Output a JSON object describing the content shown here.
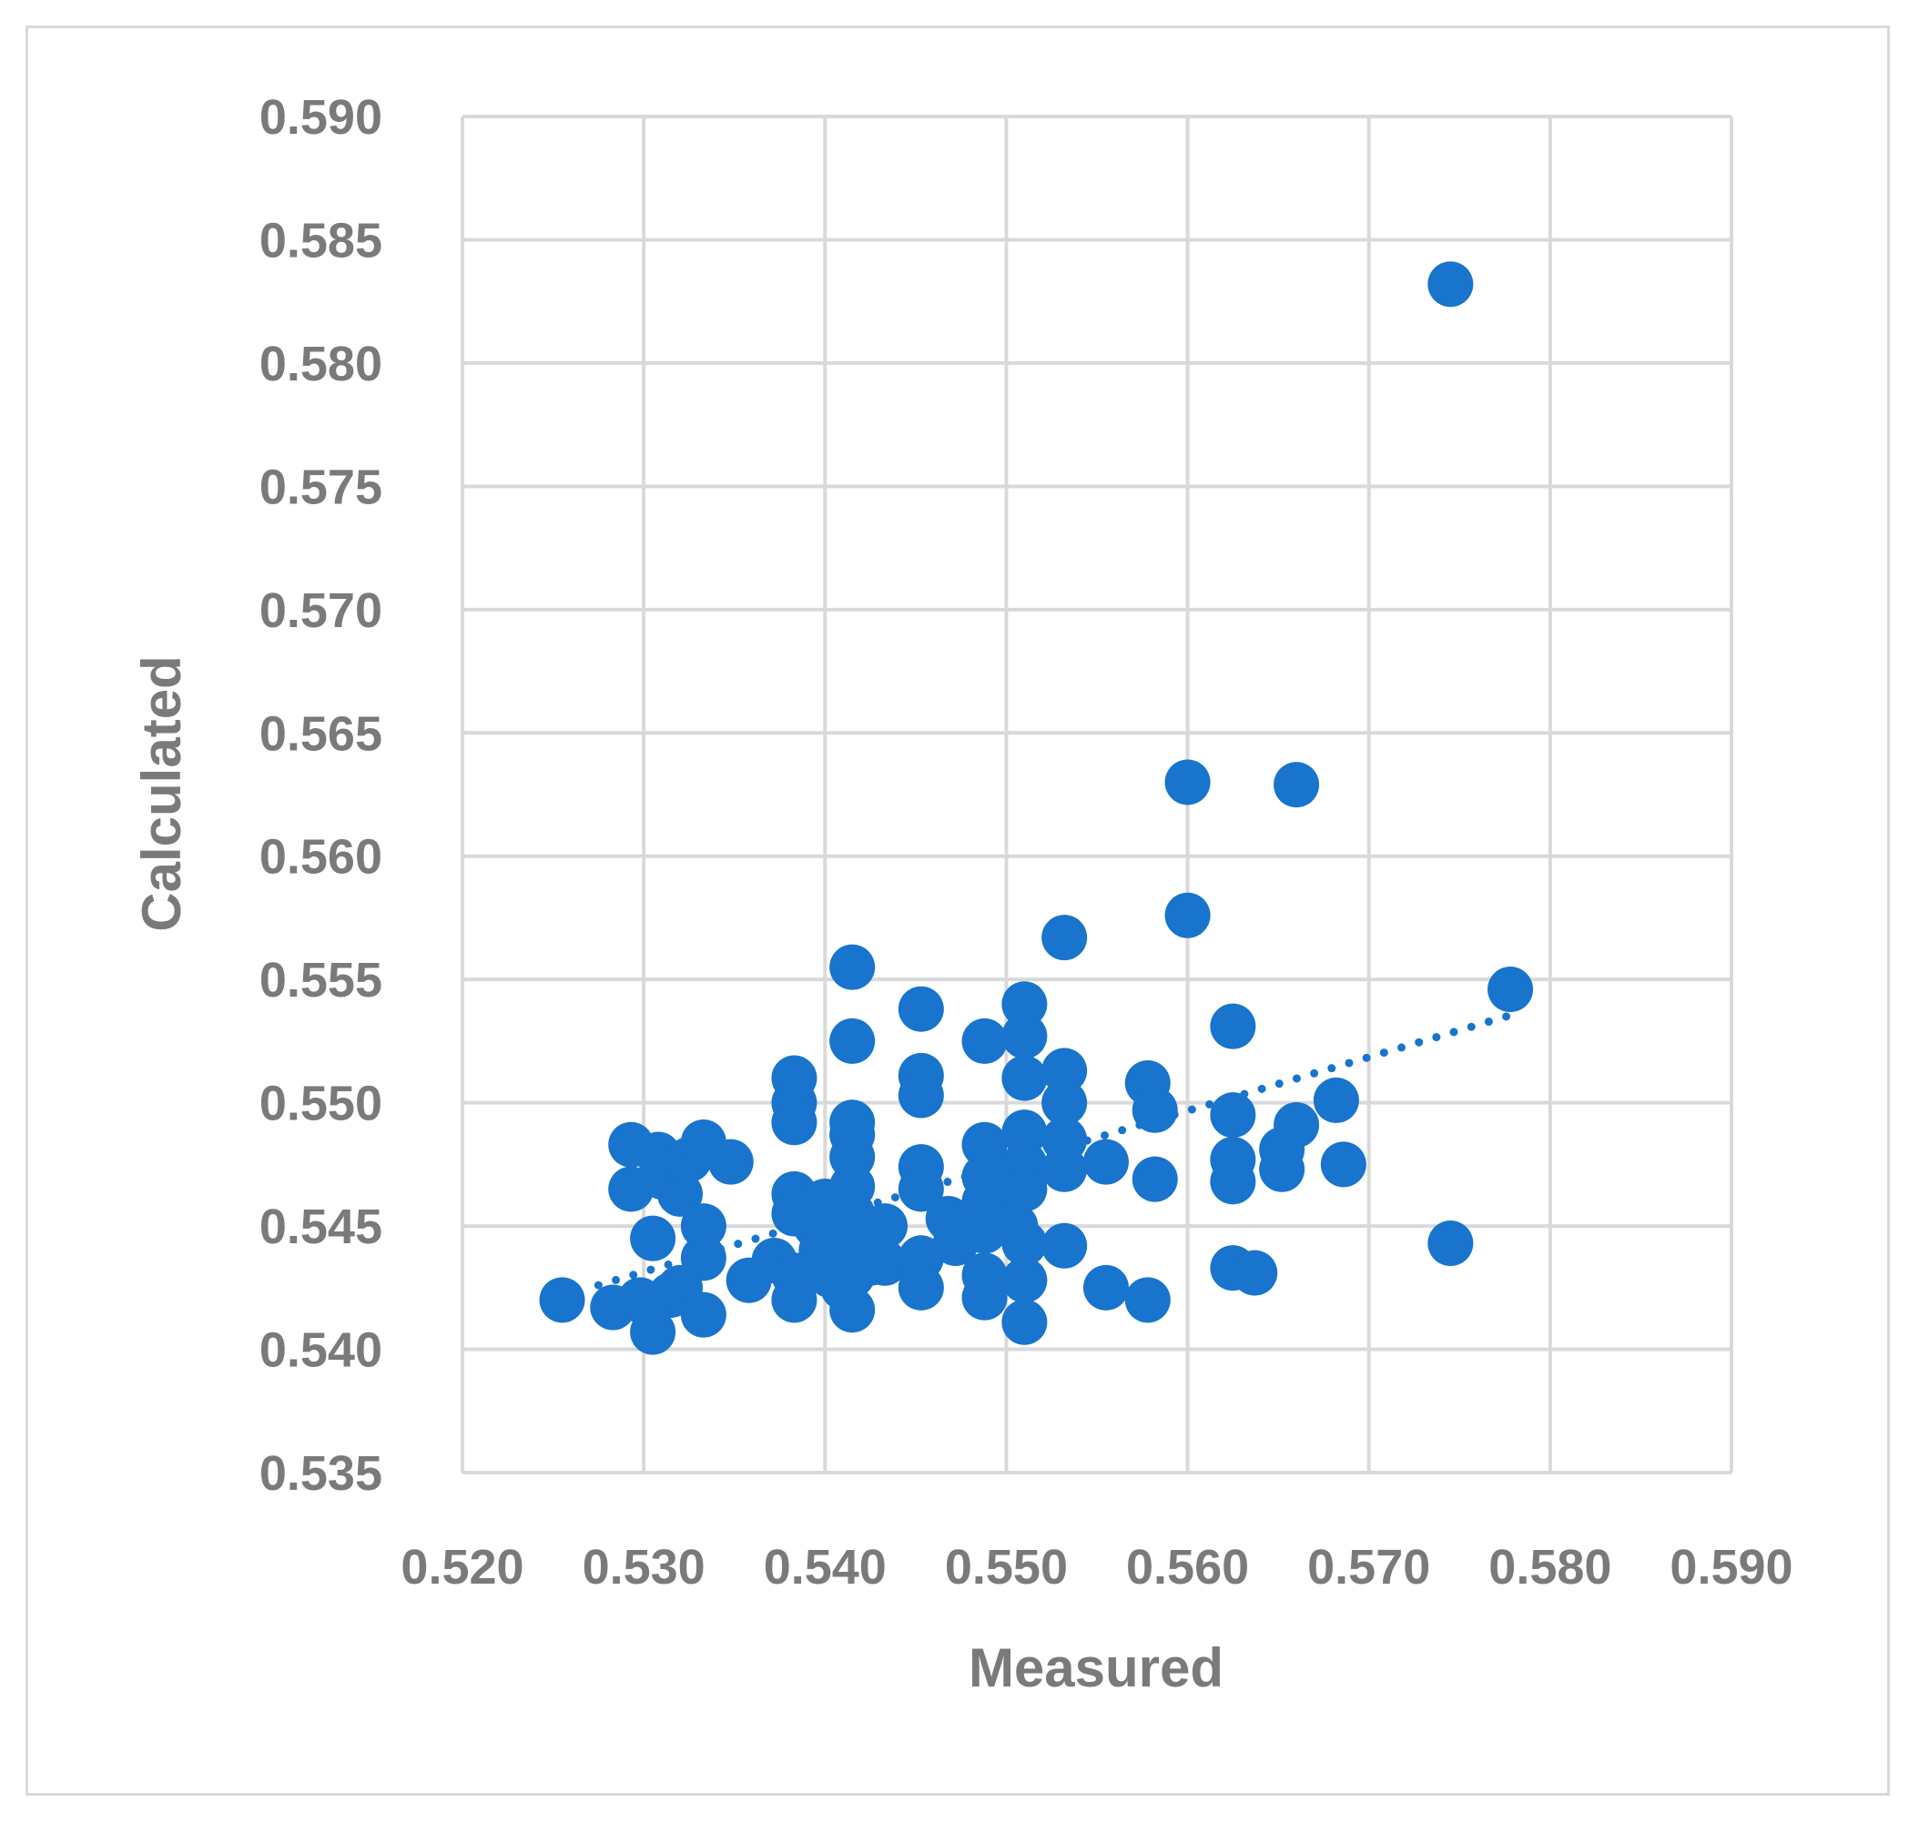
{
  "chart_data": {
    "type": "scatter",
    "title": "",
    "xlabel": "Measured",
    "ylabel": "Calculated",
    "xlim": [
      0.52,
      0.59
    ],
    "ylim": [
      0.535,
      0.59
    ],
    "xticks": [
      "0.520",
      "0.530",
      "0.540",
      "0.550",
      "0.560",
      "0.570",
      "0.580",
      "0.590"
    ],
    "yticks": [
      "0.535",
      "0.540",
      "0.545",
      "0.550",
      "0.555",
      "0.560",
      "0.565",
      "0.570",
      "0.575",
      "0.580",
      "0.585",
      "0.590"
    ],
    "grid": true,
    "legend": "none",
    "marker_color": "#1874cd",
    "trendline": {
      "style": "dotted",
      "x": [
        0.5275,
        0.5785
      ],
      "y": [
        0.5426,
        0.5537
      ]
    },
    "points": [
      [
        0.5255,
        0.542
      ],
      [
        0.5283,
        0.5417
      ],
      [
        0.5293,
        0.5483
      ],
      [
        0.5293,
        0.5465
      ],
      [
        0.5298,
        0.542
      ],
      [
        0.5305,
        0.5407
      ],
      [
        0.5305,
        0.5445
      ],
      [
        0.5308,
        0.5479
      ],
      [
        0.531,
        0.547
      ],
      [
        0.5315,
        0.5422
      ],
      [
        0.532,
        0.5425
      ],
      [
        0.532,
        0.5463
      ],
      [
        0.5325,
        0.5477
      ],
      [
        0.5333,
        0.5484
      ],
      [
        0.5333,
        0.545
      ],
      [
        0.5333,
        0.5437
      ],
      [
        0.5333,
        0.5414
      ],
      [
        0.5348,
        0.5476
      ],
      [
        0.5358,
        0.5428
      ],
      [
        0.5372,
        0.5436
      ],
      [
        0.5383,
        0.551
      ],
      [
        0.5383,
        0.55
      ],
      [
        0.5383,
        0.5492
      ],
      [
        0.5383,
        0.5463
      ],
      [
        0.5383,
        0.5455
      ],
      [
        0.5383,
        0.543
      ],
      [
        0.5383,
        0.542
      ],
      [
        0.5395,
        0.545
      ],
      [
        0.5398,
        0.544
      ],
      [
        0.54,
        0.546
      ],
      [
        0.5403,
        0.543
      ],
      [
        0.5408,
        0.5447
      ],
      [
        0.541,
        0.5425
      ],
      [
        0.5415,
        0.5555
      ],
      [
        0.5415,
        0.5525
      ],
      [
        0.5415,
        0.5492
      ],
      [
        0.5415,
        0.5487
      ],
      [
        0.5415,
        0.5478
      ],
      [
        0.5415,
        0.5466
      ],
      [
        0.5415,
        0.5455
      ],
      [
        0.5415,
        0.544
      ],
      [
        0.5415,
        0.543
      ],
      [
        0.5415,
        0.5416
      ],
      [
        0.542,
        0.5446
      ],
      [
        0.5425,
        0.5435
      ],
      [
        0.5433,
        0.545
      ],
      [
        0.5433,
        0.5435
      ],
      [
        0.5453,
        0.5538
      ],
      [
        0.5453,
        0.5511
      ],
      [
        0.5453,
        0.5503
      ],
      [
        0.5453,
        0.5474
      ],
      [
        0.5453,
        0.5465
      ],
      [
        0.5453,
        0.5437
      ],
      [
        0.5453,
        0.5425
      ],
      [
        0.5468,
        0.5453
      ],
      [
        0.5472,
        0.5443
      ],
      [
        0.5478,
        0.545
      ],
      [
        0.5488,
        0.5525
      ],
      [
        0.5488,
        0.5483
      ],
      [
        0.5488,
        0.547
      ],
      [
        0.5488,
        0.546
      ],
      [
        0.5488,
        0.5448
      ],
      [
        0.5488,
        0.543
      ],
      [
        0.5488,
        0.5421
      ],
      [
        0.5495,
        0.5455
      ],
      [
        0.55,
        0.547
      ],
      [
        0.5505,
        0.545
      ],
      [
        0.551,
        0.554
      ],
      [
        0.551,
        0.5527
      ],
      [
        0.551,
        0.551
      ],
      [
        0.551,
        0.5488
      ],
      [
        0.551,
        0.5475
      ],
      [
        0.551,
        0.5465
      ],
      [
        0.551,
        0.5443
      ],
      [
        0.551,
        0.5428
      ],
      [
        0.551,
        0.5411
      ],
      [
        0.5532,
        0.5567
      ],
      [
        0.5532,
        0.5513
      ],
      [
        0.5532,
        0.55
      ],
      [
        0.5532,
        0.5485
      ],
      [
        0.5532,
        0.5473
      ],
      [
        0.5532,
        0.5442
      ],
      [
        0.5555,
        0.5476
      ],
      [
        0.5555,
        0.5425
      ],
      [
        0.5578,
        0.5508
      ],
      [
        0.5578,
        0.542
      ],
      [
        0.5582,
        0.5497
      ],
      [
        0.5582,
        0.5469
      ],
      [
        0.56,
        0.563
      ],
      [
        0.56,
        0.5576
      ],
      [
        0.5625,
        0.5531
      ],
      [
        0.5625,
        0.5495
      ],
      [
        0.5625,
        0.5477
      ],
      [
        0.5625,
        0.5468
      ],
      [
        0.5625,
        0.5433
      ],
      [
        0.5637,
        0.5431
      ],
      [
        0.5652,
        0.5481
      ],
      [
        0.5652,
        0.5473
      ],
      [
        0.566,
        0.5629
      ],
      [
        0.566,
        0.5491
      ],
      [
        0.5682,
        0.5501
      ],
      [
        0.5686,
        0.5475
      ],
      [
        0.5745,
        0.5832
      ],
      [
        0.5745,
        0.5443
      ],
      [
        0.5778,
        0.5546
      ]
    ]
  }
}
